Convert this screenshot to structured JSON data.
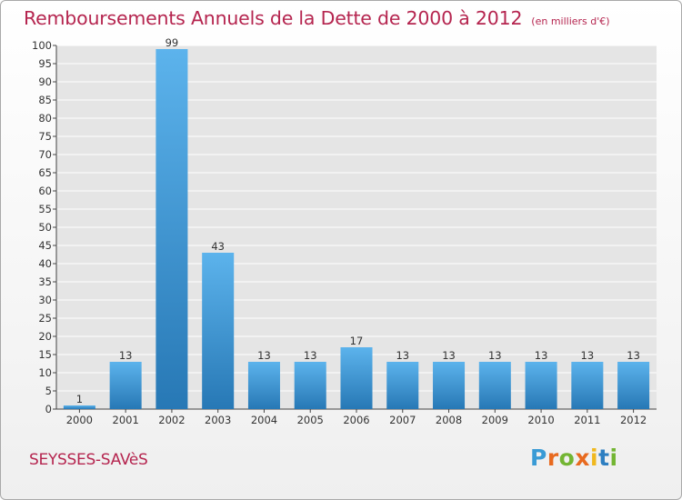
{
  "title": "Remboursements Annuels de la Dette de 2000 à 2012",
  "subtitle": "(en milliers d'€)",
  "commune": "SEYSSES-SAVèS",
  "logo": {
    "brand": "Proxiti",
    "letters": [
      "P",
      "r",
      "o",
      "x",
      "i",
      "t",
      "i"
    ]
  },
  "colors": {
    "title": "#b5254f",
    "bar_light": "#5cb3ec",
    "bar_dark": "#2778b5",
    "grid": "#ffffff",
    "plot_bg": "#e5e5e5"
  },
  "chart_data": {
    "type": "bar",
    "title": "Remboursements Annuels de la Dette de 2000 à 2012",
    "subtitle": "(en milliers d'€)",
    "categories": [
      "2000",
      "2001",
      "2002",
      "2003",
      "2004",
      "2005",
      "2006",
      "2007",
      "2008",
      "2009",
      "2010",
      "2011",
      "2012"
    ],
    "values": [
      1,
      13,
      99,
      43,
      13,
      13,
      17,
      13,
      13,
      13,
      13,
      13,
      13
    ],
    "data_labels": [
      "1",
      "13",
      "99",
      "43",
      "13",
      "13",
      "17",
      "13",
      "13",
      "13",
      "13",
      "13",
      "13"
    ],
    "ylim": [
      0,
      100
    ],
    "yticks": [
      0,
      5,
      10,
      15,
      20,
      25,
      30,
      35,
      40,
      45,
      50,
      55,
      60,
      65,
      70,
      75,
      80,
      85,
      90,
      95,
      100
    ],
    "xlabel": "",
    "ylabel": "",
    "grid": true,
    "legend": "none"
  }
}
